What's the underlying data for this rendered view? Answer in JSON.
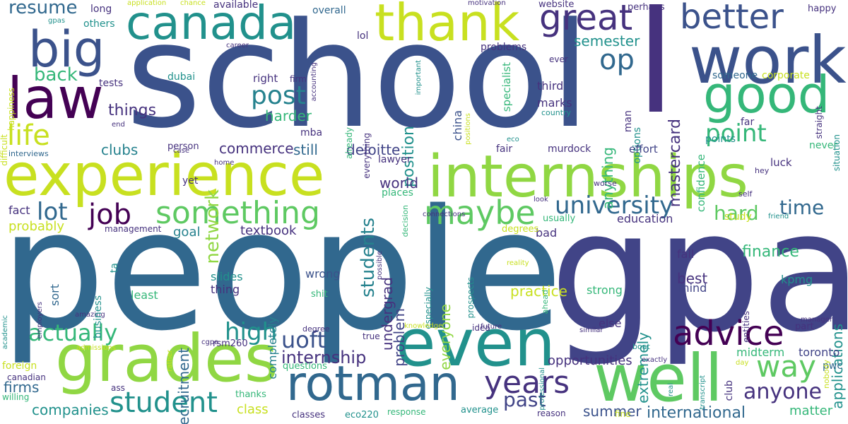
{
  "palette": {
    "dark_purple": "#440154",
    "indigo": "#3b528b",
    "slate_blue": "#31688e",
    "teal": "#21918c",
    "sea_green": "#35b779",
    "green": "#5ec962",
    "lime": "#90d743",
    "yellow_green": "#c8e020",
    "yellow": "#fde725",
    "purple": "#46327e",
    "blue_purple": "#414487",
    "cyan_teal": "#26828e",
    "mint": "#2fb47c"
  },
  "words": [
    {
      "text": "school",
      "color": "indigo"
    },
    {
      "text": "people",
      "color": "slate_blue"
    },
    {
      "text": "gpa",
      "color": "blue_purple"
    },
    {
      "text": "l",
      "color": "purple"
    },
    {
      "text": "work",
      "color": "indigo"
    },
    {
      "text": "experience",
      "color": "yellow_green"
    },
    {
      "text": "internships",
      "color": "lime"
    },
    {
      "text": "even",
      "color": "teal"
    },
    {
      "text": "well",
      "color": "green"
    },
    {
      "text": "grades",
      "color": "lime"
    },
    {
      "text": "rotman",
      "color": "slate_blue"
    },
    {
      "text": "canada",
      "color": "teal"
    },
    {
      "text": "thank",
      "color": "yellow_green"
    },
    {
      "text": "good",
      "color": "sea_green"
    },
    {
      "text": "big",
      "color": "indigo"
    },
    {
      "text": "law",
      "color": "dark_purple"
    },
    {
      "text": "better",
      "color": "indigo"
    },
    {
      "text": "great",
      "color": "purple"
    },
    {
      "text": "op",
      "color": "slate_blue"
    },
    {
      "text": "advice",
      "color": "dark_purple"
    },
    {
      "text": "something",
      "color": "green"
    },
    {
      "text": "maybe",
      "color": "green"
    },
    {
      "text": "university",
      "color": "slate_blue"
    },
    {
      "text": "years",
      "color": "purple"
    },
    {
      "text": "student",
      "color": "teal"
    },
    {
      "text": "way",
      "color": "green"
    },
    {
      "text": "life",
      "color": "yellow_green"
    },
    {
      "text": "post",
      "color": "cyan_teal"
    },
    {
      "text": "point",
      "color": "sea_green"
    },
    {
      "text": "job",
      "color": "dark_purple"
    },
    {
      "text": "lot",
      "color": "slate_blue"
    },
    {
      "text": "high",
      "color": "teal"
    },
    {
      "text": "actually",
      "color": "sea_green"
    },
    {
      "text": "uoft",
      "color": "indigo"
    },
    {
      "text": "network",
      "color": "lime"
    },
    {
      "text": "hard",
      "color": "green"
    },
    {
      "text": "time",
      "color": "slate_blue"
    },
    {
      "text": "anyone",
      "color": "purple"
    },
    {
      "text": "past",
      "color": "blue_purple"
    },
    {
      "text": "resume",
      "color": "slate_blue"
    },
    {
      "text": "back",
      "color": "sea_green"
    },
    {
      "text": "things",
      "color": "purple"
    },
    {
      "text": "students",
      "color": "cyan_teal"
    },
    {
      "text": "internship",
      "color": "purple"
    },
    {
      "text": "firms",
      "color": "slate_blue"
    },
    {
      "text": "companies",
      "color": "teal"
    },
    {
      "text": "international",
      "color": "slate_blue"
    },
    {
      "text": "mastercard",
      "color": "purple"
    },
    {
      "text": "position",
      "color": "teal"
    },
    {
      "text": "anything",
      "color": "sea_green"
    },
    {
      "text": "finance",
      "color": "sea_green"
    },
    {
      "text": "applications",
      "color": "teal"
    },
    {
      "text": "deloitte",
      "color": "blue_purple"
    },
    {
      "text": "commerce",
      "color": "purple"
    },
    {
      "text": "still",
      "color": "slate_blue"
    },
    {
      "text": "clubs",
      "color": "cyan_teal"
    },
    {
      "text": "semester",
      "color": "teal"
    },
    {
      "text": "harder",
      "color": "sea_green"
    },
    {
      "text": "recruitment",
      "color": "slate_blue"
    },
    {
      "text": "undergrad",
      "color": "purple"
    },
    {
      "text": "problem",
      "color": "blue_purple"
    },
    {
      "text": "everyone",
      "color": "lime"
    },
    {
      "text": "extremely",
      "color": "teal"
    },
    {
      "text": "best",
      "color": "purple"
    },
    {
      "text": "practice",
      "color": "yellow_green"
    },
    {
      "text": "summer",
      "color": "indigo"
    },
    {
      "text": "opportunities",
      "color": "purple"
    },
    {
      "text": "matter",
      "color": "sea_green"
    },
    {
      "text": "class",
      "color": "yellow_green"
    },
    {
      "text": "midterm",
      "color": "sea_green"
    },
    {
      "text": "toronto",
      "color": "blue_purple"
    },
    {
      "text": "completely",
      "color": "cyan_teal"
    },
    {
      "text": "textbook",
      "color": "purple"
    },
    {
      "text": "education",
      "color": "purple"
    },
    {
      "text": "goal",
      "color": "cyan_teal"
    },
    {
      "text": "probably",
      "color": "yellow_green"
    },
    {
      "text": "world",
      "color": "purple"
    },
    {
      "text": "fact",
      "color": "purple"
    },
    {
      "text": "wrong",
      "color": "indigo"
    },
    {
      "text": "sort",
      "color": "slate_blue"
    },
    {
      "text": "slides",
      "color": "teal"
    },
    {
      "text": "thing",
      "color": "purple"
    },
    {
      "text": "least",
      "color": "sea_green"
    },
    {
      "text": "strong",
      "color": "sea_green"
    },
    {
      "text": "fall",
      "color": "purple"
    },
    {
      "text": "mind",
      "color": "blue_purple"
    },
    {
      "text": "else",
      "color": "purple"
    },
    {
      "text": "kpmg",
      "color": "teal"
    },
    {
      "text": "confidence",
      "color": "sea_green"
    },
    {
      "text": "specialist",
      "color": "sea_green"
    },
    {
      "text": "china",
      "color": "indigo"
    },
    {
      "text": "marks",
      "color": "purple"
    },
    {
      "text": "third",
      "color": "purple"
    },
    {
      "text": "man",
      "color": "purple"
    },
    {
      "text": "options",
      "color": "teal"
    },
    {
      "text": "far",
      "color": "purple"
    },
    {
      "text": "points",
      "color": "teal"
    },
    {
      "text": "luck",
      "color": "purple"
    },
    {
      "text": "never",
      "color": "sea_green"
    },
    {
      "text": "effort",
      "color": "blue_purple"
    },
    {
      "text": "murdock",
      "color": "purple"
    },
    {
      "text": "fair",
      "color": "purple"
    },
    {
      "text": "bad",
      "color": "purple"
    },
    {
      "text": "degrees",
      "color": "yellow_green"
    },
    {
      "text": "usually",
      "color": "sea_green"
    },
    {
      "text": "someone",
      "color": "slate_blue"
    },
    {
      "text": "corporate",
      "color": "yellow_green"
    },
    {
      "text": "right",
      "color": "purple"
    },
    {
      "text": "dubai",
      "color": "teal"
    },
    {
      "text": "tests",
      "color": "purple"
    },
    {
      "text": "mba",
      "color": "purple"
    },
    {
      "text": "person",
      "color": "purple"
    },
    {
      "text": "lawyer",
      "color": "purple"
    },
    {
      "text": "places",
      "color": "sea_green"
    },
    {
      "text": "management",
      "color": "purple"
    },
    {
      "text": "yet",
      "color": "purple"
    },
    {
      "text": "problems",
      "color": "purple"
    },
    {
      "text": "lol",
      "color": "purple"
    },
    {
      "text": "overall",
      "color": "slate_blue"
    },
    {
      "text": "available",
      "color": "purple"
    },
    {
      "text": "long",
      "color": "purple"
    },
    {
      "text": "others",
      "color": "teal"
    },
    {
      "text": "website",
      "color": "purple"
    },
    {
      "text": "perhaps",
      "color": "purple"
    },
    {
      "text": "happy",
      "color": "purple"
    },
    {
      "text": "ever",
      "color": "purple"
    },
    {
      "text": "happiness",
      "color": "yellow_green"
    },
    {
      "text": "difficult",
      "color": "yellow_green"
    },
    {
      "text": "already",
      "color": "sea_green"
    },
    {
      "text": "everything",
      "color": "purple"
    },
    {
      "text": "decision",
      "color": "sea_green"
    },
    {
      "text": "especially",
      "color": "teal"
    },
    {
      "text": "prospects",
      "color": "teal"
    },
    {
      "text": "ahead",
      "color": "sea_green"
    },
    {
      "text": "entities",
      "color": "purple"
    },
    {
      "text": "situation",
      "color": "teal"
    },
    {
      "text": "straight",
      "color": "purple"
    },
    {
      "text": "firm",
      "color": "purple"
    },
    {
      "text": "accounting",
      "color": "purple"
    },
    {
      "text": "important",
      "color": "teal"
    },
    {
      "text": "career",
      "color": "purple"
    },
    {
      "text": "positions",
      "color": "yellow_green"
    },
    {
      "text": "country",
      "color": "teal"
    },
    {
      "text": "eco",
      "color": "teal"
    },
    {
      "text": "idea",
      "color": "purple"
    },
    {
      "text": "future",
      "color": "purple"
    },
    {
      "text": "knowledge",
      "color": "yellow_green"
    },
    {
      "text": "true",
      "color": "purple"
    },
    {
      "text": "degree",
      "color": "purple"
    },
    {
      "text": "shit",
      "color": "sea_green"
    },
    {
      "text": "questions",
      "color": "sea_green"
    },
    {
      "text": "classes",
      "color": "purple"
    },
    {
      "text": "eco220",
      "color": "teal"
    },
    {
      "text": "response",
      "color": "sea_green"
    },
    {
      "text": "average",
      "color": "teal"
    },
    {
      "text": "reason",
      "color": "purple"
    },
    {
      "text": "fine",
      "color": "yellow_green"
    },
    {
      "text": "thanks",
      "color": "sea_green"
    },
    {
      "text": "ass",
      "color": "purple"
    },
    {
      "text": "canadian",
      "color": "purple"
    },
    {
      "text": "willing",
      "color": "sea_green"
    },
    {
      "text": "foreign",
      "color": "yellow_green"
    },
    {
      "text": "amazing",
      "color": "purple"
    },
    {
      "text": "employers",
      "color": "purple"
    },
    {
      "text": "business",
      "color": "teal"
    },
    {
      "text": "ta",
      "color": "teal"
    },
    {
      "text": "academic",
      "color": "teal"
    },
    {
      "text": "admissions",
      "color": "yellow_green"
    },
    {
      "text": "cgpa",
      "color": "purple"
    },
    {
      "text": "rather",
      "color": "yellow_green"
    },
    {
      "text": "rsm260",
      "color": "purple"
    },
    {
      "text": "club",
      "color": "purple"
    },
    {
      "text": "day",
      "color": "yellow_green"
    },
    {
      "text": "pwc",
      "color": "slate_blue"
    },
    {
      "text": "nobody",
      "color": "yellow_green"
    },
    {
      "text": "transcript",
      "color": "teal"
    },
    {
      "text": "real",
      "color": "teal"
    },
    {
      "text": "exactly",
      "color": "purple"
    },
    {
      "text": "professional",
      "color": "teal"
    },
    {
      "text": "similar",
      "color": "purple"
    },
    {
      "text": "boat",
      "color": "teal"
    },
    {
      "text": "part",
      "color": "purple"
    },
    {
      "text": "manager",
      "color": "purple"
    },
    {
      "text": "reality",
      "color": "yellow_green"
    },
    {
      "text": "worse",
      "color": "purple"
    },
    {
      "text": "look",
      "color": "purple"
    },
    {
      "text": "study",
      "color": "yellow_green"
    },
    {
      "text": "hey",
      "color": "purple"
    },
    {
      "text": "friend",
      "color": "teal"
    },
    {
      "text": "self",
      "color": "purple"
    },
    {
      "text": "connections",
      "color": "purple"
    },
    {
      "text": "possible",
      "color": "purple"
    },
    {
      "text": "home",
      "color": "purple"
    },
    {
      "text": "case",
      "color": "purple"
    },
    {
      "text": "interviews",
      "color": "slate_blue"
    },
    {
      "text": "end",
      "color": "purple"
    },
    {
      "text": "gpas",
      "color": "teal"
    },
    {
      "text": "application",
      "color": "yellow_green"
    },
    {
      "text": "chance",
      "color": "yellow_green"
    },
    {
      "text": "motivation",
      "color": "purple"
    }
  ]
}
